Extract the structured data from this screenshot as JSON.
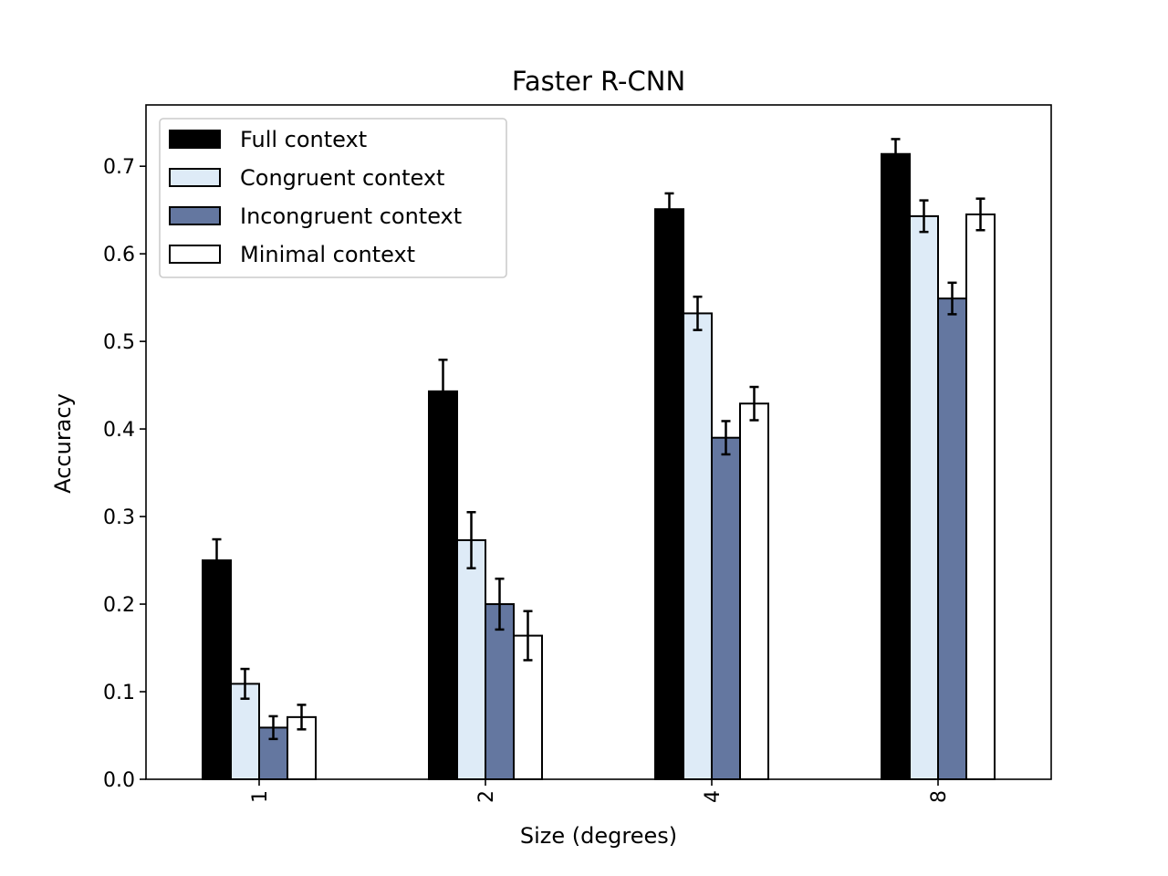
{
  "chart_data": {
    "type": "bar",
    "title": "Faster R-CNN",
    "xlabel": "Size (degrees)",
    "ylabel": "Accuracy",
    "categories": [
      "1",
      "2",
      "4",
      "8"
    ],
    "ylim": [
      0,
      0.77
    ],
    "yticks": [
      0.0,
      0.1,
      0.2,
      0.3,
      0.4,
      0.5,
      0.6,
      0.7
    ],
    "ytick_labels": [
      "0.0",
      "0.1",
      "0.2",
      "0.3",
      "0.4",
      "0.5",
      "0.6",
      "0.7"
    ],
    "grid": false,
    "legend_position": "top-left",
    "series": [
      {
        "name": "Full context",
        "color": "#000000",
        "values": [
          0.25,
          0.443,
          0.651,
          0.714
        ],
        "errors": [
          0.024,
          0.036,
          0.018,
          0.017
        ]
      },
      {
        "name": "Congruent context",
        "color": "#deebf7",
        "values": [
          0.109,
          0.273,
          0.532,
          0.643
        ],
        "errors": [
          0.017,
          0.032,
          0.019,
          0.018
        ]
      },
      {
        "name": "Incongruent context",
        "color": "#6477a0",
        "values": [
          0.059,
          0.2,
          0.39,
          0.549
        ],
        "errors": [
          0.013,
          0.029,
          0.019,
          0.018
        ]
      },
      {
        "name": "Minimal context",
        "color": "#ffffff",
        "values": [
          0.071,
          0.164,
          0.429,
          0.645
        ],
        "errors": [
          0.014,
          0.028,
          0.019,
          0.018
        ]
      }
    ]
  }
}
